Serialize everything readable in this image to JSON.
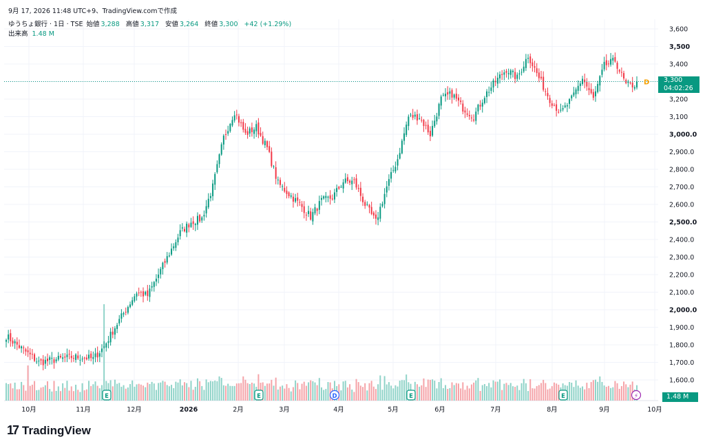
{
  "timestamp": "9月 17, 2026 11:48 UTC+9、TradingView.comで作成",
  "header": {
    "symbol": "ゆうちょ銀行 · 1日 · TSE",
    "open_label": "始値",
    "open": "3,288",
    "high_label": "高値",
    "high": "3,317",
    "low_label": "安値",
    "low": "3,264",
    "close_label": "終値",
    "close": "3,300",
    "change": "+42 (+1.29%)",
    "volume_label": "出来高",
    "volume": "1.48 M"
  },
  "price_tag": {
    "price": "3,300",
    "countdown": "04:02:26"
  },
  "volume_tag": "1.48 M",
  "logo_text": "TradingView",
  "colors": {
    "up": "#089981",
    "down": "#F23645",
    "vol_up": "#8fd3c8",
    "vol_down": "#f5a3a8",
    "grid": "#f0f3fa"
  },
  "chart_data": {
    "type": "candlestick",
    "ylim": [
      1600,
      3650
    ],
    "y_ticks": [
      "3,600",
      "3,500",
      "3,400",
      "3,300",
      "3,200",
      "3,100",
      "3,000.0",
      "2,900.0",
      "2,800.0",
      "2,700.0",
      "2,600.0",
      "2,500.0",
      "2,400.0",
      "2,300.0",
      "2,200.0",
      "2,100.0",
      "2,000.0",
      "1,900.0",
      "1,800.0",
      "1,700.0",
      "1,600.0"
    ],
    "y_tick_values": [
      3600,
      3500,
      3400,
      3300,
      3200,
      3100,
      3000,
      2900,
      2800,
      2700,
      2600,
      2500,
      2400,
      2300,
      2200,
      2100,
      2000,
      1900,
      1800,
      1700,
      1600
    ],
    "bold_ticks": [
      "3,500",
      "3,000.0",
      "2,500.0",
      "2,000.0"
    ],
    "x_labels": [
      "10月",
      "11月",
      "12月",
      "2026",
      "2月",
      "3月",
      "4月",
      "5月",
      "6月",
      "7月",
      "8月",
      "9月",
      "10月"
    ],
    "last_price": 3300,
    "event_markers": [
      "E",
      "E",
      "D",
      "E",
      "E"
    ],
    "anchors": [
      [
        0,
        1850
      ],
      [
        5,
        1800
      ],
      [
        10,
        1750
      ],
      [
        15,
        1700
      ],
      [
        20,
        1710
      ],
      [
        25,
        1720
      ],
      [
        30,
        1730
      ],
      [
        35,
        1730
      ],
      [
        40,
        1720
      ],
      [
        45,
        1790
      ],
      [
        50,
        1900
      ],
      [
        55,
        2000
      ],
      [
        60,
        2100
      ],
      [
        65,
        2080
      ],
      [
        70,
        2200
      ],
      [
        75,
        2320
      ],
      [
        80,
        2440
      ],
      [
        85,
        2500
      ],
      [
        90,
        2520
      ],
      [
        95,
        2700
      ],
      [
        100,
        2980
      ],
      [
        105,
        3130
      ],
      [
        110,
        3000
      ],
      [
        115,
        3040
      ],
      [
        120,
        2920
      ],
      [
        125,
        2720
      ],
      [
        130,
        2660
      ],
      [
        135,
        2600
      ],
      [
        140,
        2530
      ],
      [
        145,
        2620
      ],
      [
        150,
        2640
      ],
      [
        155,
        2730
      ],
      [
        160,
        2730
      ],
      [
        165,
        2600
      ],
      [
        170,
        2500
      ],
      [
        175,
        2700
      ],
      [
        180,
        2860
      ],
      [
        185,
        3100
      ],
      [
        190,
        3100
      ],
      [
        195,
        3000
      ],
      [
        200,
        3200
      ],
      [
        205,
        3230
      ],
      [
        210,
        3150
      ],
      [
        215,
        3100
      ],
      [
        220,
        3220
      ],
      [
        225,
        3300
      ],
      [
        230,
        3370
      ],
      [
        235,
        3320
      ],
      [
        240,
        3450
      ],
      [
        245,
        3320
      ],
      [
        250,
        3200
      ],
      [
        255,
        3120
      ],
      [
        260,
        3200
      ],
      [
        265,
        3320
      ],
      [
        270,
        3200
      ],
      [
        275,
        3390
      ],
      [
        280,
        3420
      ],
      [
        285,
        3280
      ],
      [
        290,
        3280
      ]
    ],
    "volume_range": [
      0.6,
      3.3
    ],
    "volume_last": 1.48
  }
}
